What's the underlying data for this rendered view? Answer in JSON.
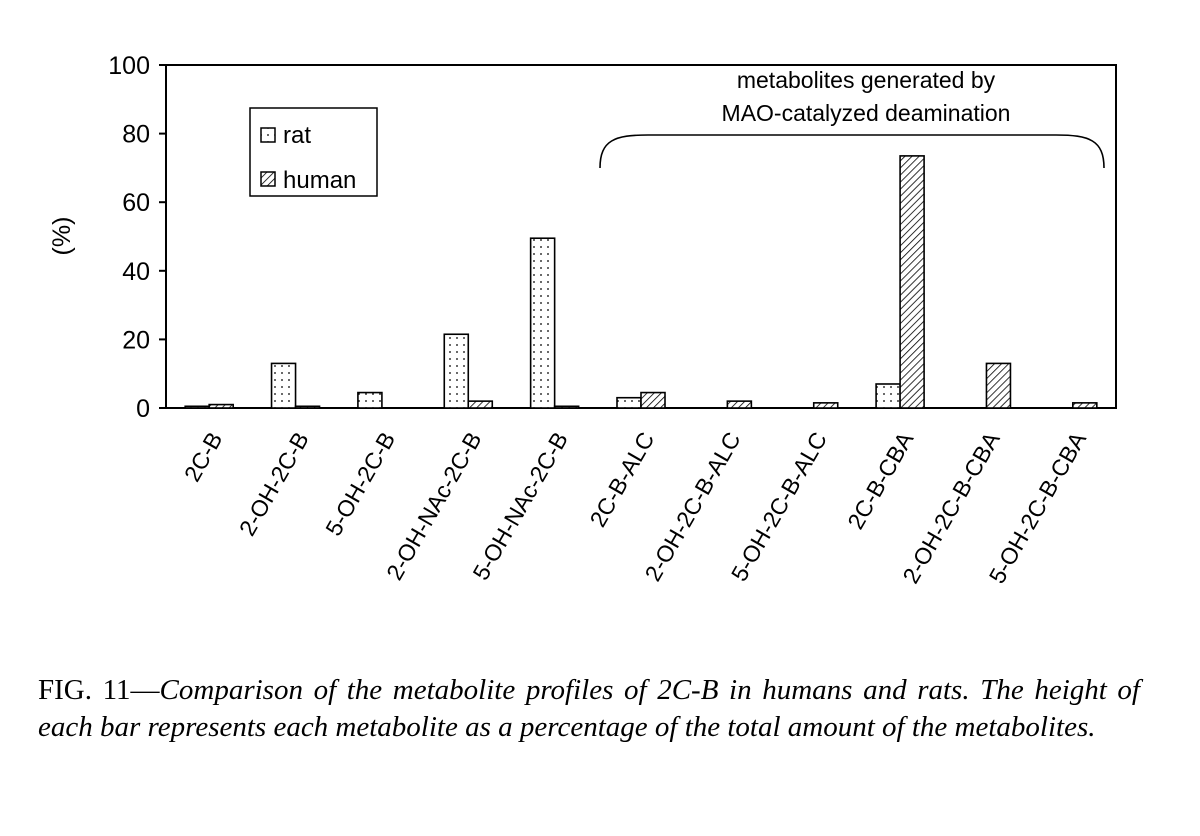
{
  "chart_data": {
    "type": "bar",
    "ylabel": "(%)",
    "ylim": [
      0,
      100
    ],
    "yticks": [
      "0",
      "20",
      "40",
      "60",
      "80",
      "100"
    ],
    "grid": false,
    "legend_position": "top-left",
    "categories": [
      "2C-B",
      "2-OH-2C-B",
      "5-OH-2C-B",
      "2-OH-NAc-2C-B",
      "5-OH-NAc-2C-B",
      "2C-B-ALC",
      "2-OH-2C-B-ALC",
      "5-OH-2C-B-ALC",
      "2C-B-CBA",
      "2-OH-2C-B-CBA",
      "5-OH-2C-B-CBA"
    ],
    "series": [
      {
        "name": "rat",
        "pattern": "dots",
        "values": [
          0.5,
          13,
          4.5,
          21.5,
          49.5,
          3,
          0,
          0,
          7,
          0,
          0
        ]
      },
      {
        "name": "human",
        "pattern": "hatch",
        "values": [
          1,
          0.5,
          0,
          2,
          0.5,
          4.5,
          2,
          1.5,
          73.5,
          13,
          1.5
        ]
      }
    ],
    "annotation": {
      "lines": [
        "metabolites generated by",
        "MAO-catalyzed deamination"
      ],
      "span_from": "2C-B-ALC",
      "span_to": "5-OH-2C-B-CBA"
    }
  },
  "caption": {
    "lead": "FIG. 11—",
    "body": "Comparison of the metabolite profiles of 2C-B in humans and rats. The height of each bar represents each metabolite as a percentage of the total amount of the metabolites."
  }
}
